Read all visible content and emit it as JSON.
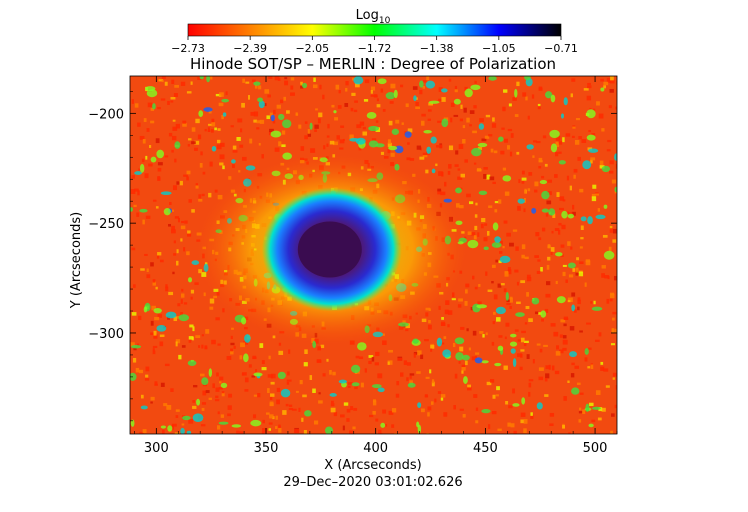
{
  "chart_data": {
    "type": "heatmap",
    "title": "Hinode SOT/SP – MERLIN : Degree of Polarization",
    "colorbar": {
      "label": "Log",
      "label_subscript": "10",
      "ticks": [
        "−2.73",
        "−2.39",
        "−2.05",
        "−1.72",
        "−1.38",
        "−1.05",
        "−0.71"
      ],
      "range": [
        -2.73,
        -0.71
      ],
      "colormap": [
        "#ff0000",
        "#ff8000",
        "#ffff00",
        "#00ff00",
        "#00ffff",
        "#0000ff",
        "#000000"
      ]
    },
    "xlabel": "X (Arcseconds)",
    "ylabel": "Y (Arcseconds)",
    "xlim": [
      288,
      510
    ],
    "ylim": [
      -346,
      -183
    ],
    "xticks": [
      300,
      350,
      400,
      450,
      500
    ],
    "xtick_labels": [
      "300",
      "350",
      "400",
      "450",
      "500"
    ],
    "yticks": [
      -200,
      -250,
      -300
    ],
    "ytick_labels": [
      "−200",
      "−250",
      "−300"
    ],
    "features": [
      {
        "name": "sunspot umbra",
        "x": 380,
        "y": -262,
        "log_value": -0.8
      },
      {
        "name": "penumbra",
        "x": 380,
        "y": -262,
        "log_value": -1.3
      }
    ],
    "background_log_value": -2.6,
    "grid": false,
    "legend": "colorbar-top"
  },
  "footer": {
    "timestamp": "29–Dec–2020 03:01:02.626"
  }
}
